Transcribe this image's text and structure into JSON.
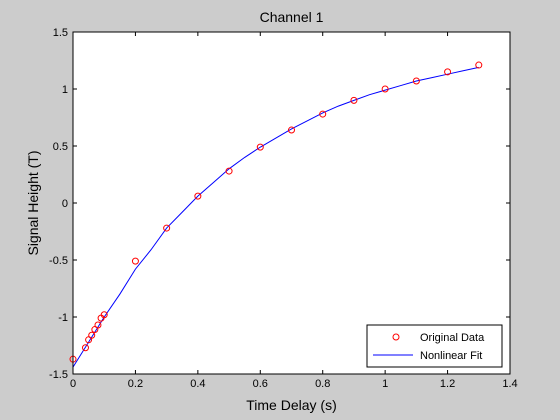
{
  "chart_data": {
    "type": "scatter",
    "title": "Channel 1",
    "xlabel": "Time Delay (s)",
    "ylabel": "Signal Height (T)",
    "xlim": [
      0,
      1.4
    ],
    "ylim": [
      -1.5,
      1.5
    ],
    "xticks": [
      0,
      0.2,
      0.4,
      0.6,
      0.8,
      1,
      1.2,
      1.4
    ],
    "xtick_labels": [
      "0",
      "0.2",
      "0.4",
      "0.6",
      "0.8",
      "1",
      "1.2",
      "1.4"
    ],
    "yticks": [
      -1.5,
      -1,
      -0.5,
      0,
      0.5,
      1,
      1.5
    ],
    "ytick_labels": [
      "-1.5",
      "-1",
      "-0.5",
      "0",
      "0.5",
      "1",
      "1.5"
    ],
    "grid": false,
    "legend_position": "bottom-right",
    "series": [
      {
        "name": "Original Data",
        "kind": "markers",
        "marker": "circle",
        "color": "#ff0000",
        "x": [
          0.0,
          0.04,
          0.05,
          0.06,
          0.07,
          0.08,
          0.09,
          0.1,
          0.2,
          0.3,
          0.4,
          0.5,
          0.6,
          0.7,
          0.8,
          0.9,
          1.0,
          1.1,
          1.2,
          1.3
        ],
        "y": [
          -1.37,
          -1.27,
          -1.2,
          -1.16,
          -1.11,
          -1.07,
          -1.01,
          -0.98,
          -0.51,
          -0.22,
          0.06,
          0.28,
          0.49,
          0.64,
          0.78,
          0.9,
          1.0,
          1.07,
          1.15,
          1.21
        ]
      },
      {
        "name": "Nonlinear Fit",
        "kind": "line",
        "color": "#0000ff",
        "x": [
          0.0,
          0.05,
          0.1,
          0.15,
          0.2,
          0.25,
          0.3,
          0.35,
          0.4,
          0.45,
          0.5,
          0.55,
          0.6,
          0.65,
          0.7,
          0.75,
          0.8,
          0.85,
          0.9,
          0.95,
          1.0,
          1.05,
          1.1,
          1.15,
          1.2,
          1.25,
          1.3
        ],
        "y": [
          -1.44,
          -1.22,
          -1.0,
          -0.8,
          -0.58,
          -0.41,
          -0.22,
          -0.08,
          0.06,
          0.18,
          0.3,
          0.4,
          0.49,
          0.57,
          0.65,
          0.72,
          0.79,
          0.85,
          0.9,
          0.95,
          0.99,
          1.03,
          1.07,
          1.1,
          1.13,
          1.16,
          1.19
        ]
      }
    ]
  }
}
